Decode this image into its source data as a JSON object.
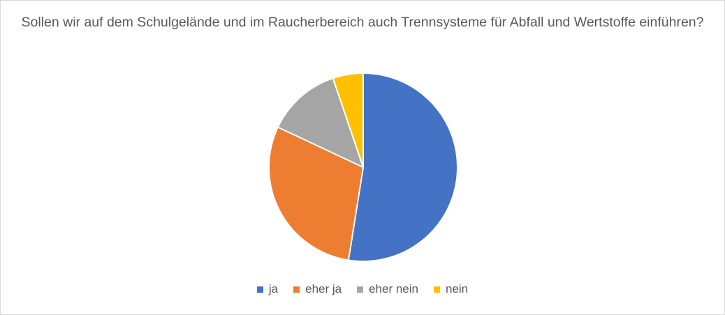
{
  "chart_data": {
    "type": "pie",
    "title": "Sollen wir auf dem Schulgelände und im Raucherbereich auch Trennsysteme für Abfall und Wertstoffe einführen?",
    "categories": [
      "ja",
      "eher ja",
      "eher nein",
      "nein"
    ],
    "values": [
      52.5,
      29.5,
      12.8,
      5.2
    ],
    "colors": [
      "#4472c4",
      "#ed7d31",
      "#a5a5a5",
      "#ffc000"
    ],
    "start_angle_deg": 0,
    "direction": "clockwise",
    "legend_position": "bottom"
  }
}
